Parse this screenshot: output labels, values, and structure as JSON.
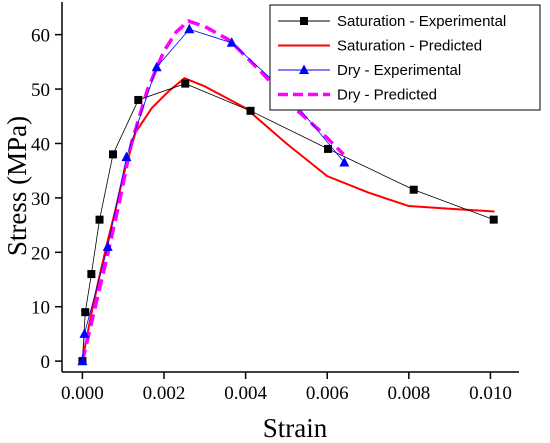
{
  "chart_data": {
    "type": "line",
    "title": "",
    "xlabel": "Strain",
    "ylabel": "Stress (MPa)",
    "xlim": [
      -0.0005,
      0.0107
    ],
    "ylim": [
      -2,
      66
    ],
    "xticks": [
      0.0,
      0.002,
      0.004,
      0.006,
      0.008,
      0.01
    ],
    "xtick_labels": [
      "0.000",
      "0.002",
      "0.004",
      "0.006",
      "0.008",
      "0.010"
    ],
    "yticks": [
      0,
      10,
      20,
      30,
      40,
      50,
      60
    ],
    "ytick_labels": [
      "0",
      "10",
      "20",
      "30",
      "40",
      "50",
      "60"
    ],
    "grid": false,
    "legend_position": "top-right",
    "series": [
      {
        "name": "Saturation - Experimental",
        "color": "#000000",
        "line_style": "solid-thin",
        "marker": "square",
        "x": [
          0.0,
          7e-05,
          0.00022,
          0.00042,
          0.00075,
          0.00137,
          0.00252,
          0.00412,
          0.00602,
          0.00812,
          0.01008
        ],
        "y": [
          0.0,
          9.0,
          16.0,
          26.0,
          38.0,
          48.0,
          51.0,
          46.0,
          39.0,
          31.5,
          26.0
        ]
      },
      {
        "name": "Saturation - Predicted",
        "color": "#ff0000",
        "line_style": "solid",
        "marker": "none",
        "x": [
          0.0,
          0.0002,
          0.0004,
          0.0006,
          0.0008,
          0.001,
          0.0013,
          0.0017,
          0.0021,
          0.0025,
          0.003,
          0.0035,
          0.004,
          0.005,
          0.006,
          0.007,
          0.008,
          0.009,
          0.0101
        ],
        "y": [
          0.0,
          8.0,
          15.0,
          21.5,
          27.5,
          34.0,
          42.0,
          46.5,
          49.5,
          52.0,
          50.5,
          48.5,
          46.5,
          40.0,
          34.0,
          31.0,
          28.5,
          28.0,
          27.5
        ]
      },
      {
        "name": "Dry - Experimental",
        "color": "#0000ff",
        "line_style": "solid-thin",
        "marker": "triangle",
        "x": [
          0.0,
          5e-05,
          0.00062,
          0.00108,
          0.00182,
          0.00262,
          0.00366,
          0.00497,
          0.00642
        ],
        "y": [
          0.0,
          5.0,
          21.0,
          37.5,
          54.0,
          61.0,
          58.5,
          49.5,
          36.5
        ]
      },
      {
        "name": "Dry - Predicted",
        "color": "#ff00ff",
        "line_style": "dashed",
        "marker": "none",
        "x": [
          0.0,
          0.0003,
          0.0006,
          0.0009,
          0.0012,
          0.0016,
          0.002,
          0.0023,
          0.0026,
          0.003,
          0.0036,
          0.0044,
          0.0052,
          0.0058,
          0.0064
        ],
        "y": [
          0.0,
          9.5,
          19.0,
          29.0,
          40.0,
          50.0,
          57.0,
          60.5,
          62.5,
          61.5,
          59.0,
          53.0,
          46.5,
          42.5,
          38.0
        ]
      }
    ]
  }
}
